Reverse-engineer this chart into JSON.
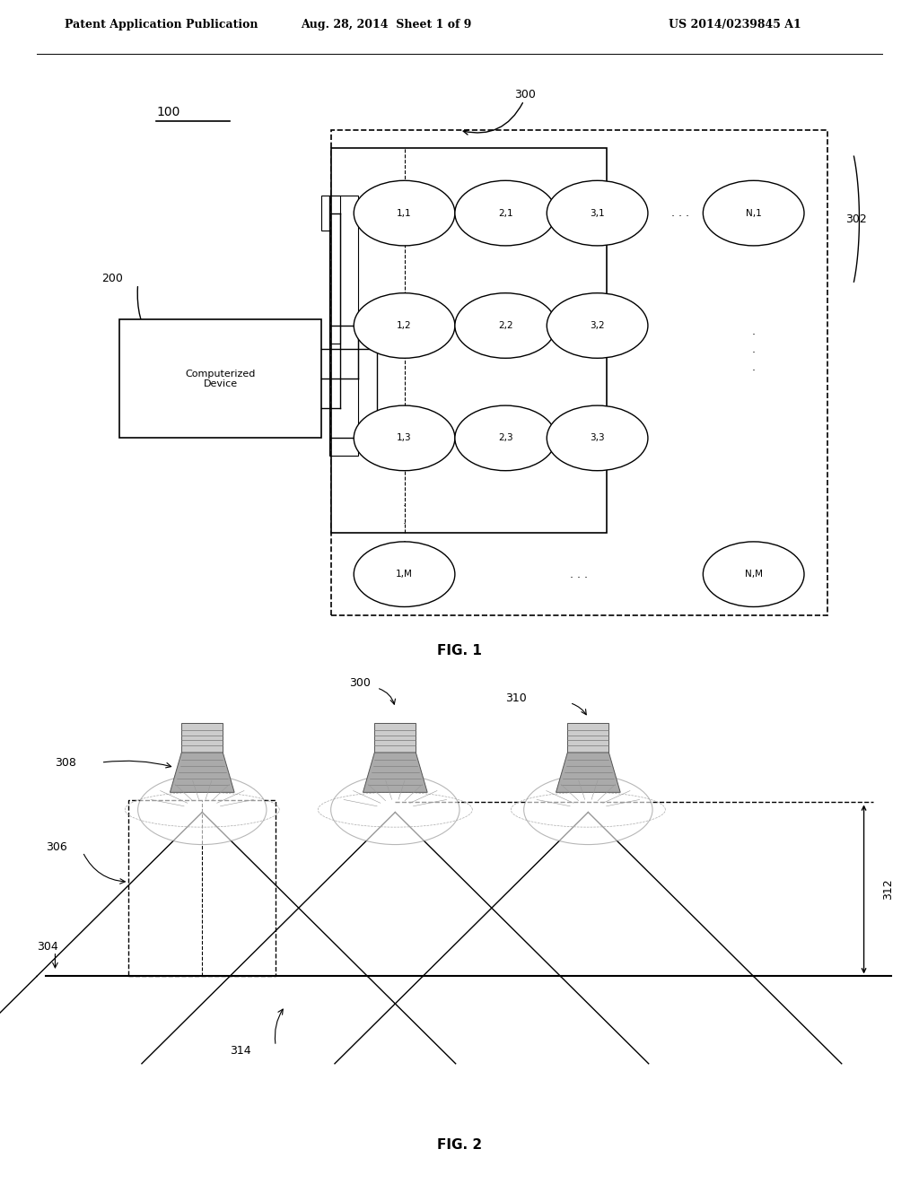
{
  "header_left": "Patent Application Publication",
  "header_mid": "Aug. 28, 2014  Sheet 1 of 9",
  "header_right": "US 2014/0239845 A1",
  "fig1_label": "FIG. 1",
  "fig2_label": "FIG. 2",
  "bg_color": "#ffffff",
  "label_100": "100",
  "label_200": "200",
  "label_300": "300",
  "label_302": "302",
  "label_304": "304",
  "label_306": "306",
  "label_308": "308",
  "label_310": "310",
  "label_312": "312",
  "label_314": "314",
  "computerized_device": "Computerized\nDevice"
}
